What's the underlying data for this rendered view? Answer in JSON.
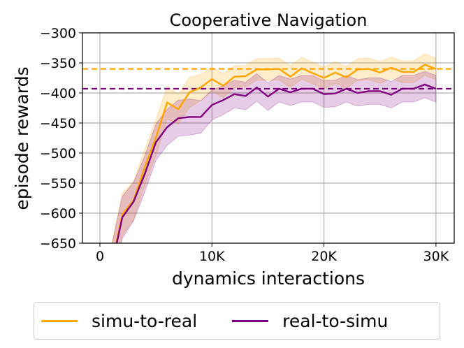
{
  "chart_data": {
    "type": "line",
    "title": "Cooperative Navigation",
    "xlabel": "dynamics interactions",
    "ylabel": "episode rewards",
    "xlim": [
      -1560,
      31630
    ],
    "ylim": [
      -650,
      -300
    ],
    "xticks": [
      0,
      10000,
      20000,
      30000
    ],
    "xtick_labels": [
      "0",
      "10K",
      "20K",
      "30K"
    ],
    "yticks": [
      -300,
      -350,
      -400,
      -450,
      -500,
      -550,
      -600,
      -650
    ],
    "ytick_labels": [
      "−300",
      "−350",
      "−400",
      "−450",
      "−500",
      "−550",
      "−600",
      "−650"
    ],
    "grid": true,
    "legend_placement": "below",
    "x": [
      1000,
      2000,
      3000,
      4000,
      5000,
      6000,
      7000,
      8000,
      9000,
      10000,
      11000,
      12000,
      13000,
      14000,
      15000,
      16000,
      17000,
      18000,
      19000,
      20000,
      21000,
      22000,
      23000,
      24000,
      25000,
      26000,
      27000,
      28000,
      29000,
      30000
    ],
    "series": [
      {
        "name": "simu-to-real",
        "color": "#FFA500",
        "values": [
          -690,
          -602,
          -579,
          -524,
          -474,
          -416,
          -427,
          -399,
          -391,
          -377,
          -388,
          -373,
          -372,
          -361,
          -361,
          -360,
          -373,
          -359,
          -367,
          -375,
          -366,
          -374,
          -361,
          -360,
          -366,
          -358,
          -365,
          -365,
          -353,
          -360
        ],
        "band_halfwidth": [
          35,
          35,
          32,
          30,
          30,
          27,
          25,
          25,
          22,
          20,
          20,
          18,
          18,
          18,
          18,
          18,
          18,
          18,
          18,
          18,
          18,
          18,
          18,
          18,
          18,
          18,
          18,
          18,
          18,
          18
        ],
        "reference_line": -360
      },
      {
        "name": "real-to-simu",
        "color": "#800080",
        "values": [
          -693,
          -607,
          -581,
          -535,
          -482,
          -457,
          -442,
          -440,
          -440,
          -420,
          -412,
          -402,
          -405,
          -391,
          -406,
          -393,
          -399,
          -393,
          -393,
          -402,
          -401,
          -393,
          -400,
          -397,
          -397,
          -403,
          -393,
          -393,
          -386,
          -393
        ],
        "band_halfwidth": [
          35,
          35,
          32,
          30,
          30,
          30,
          30,
          30,
          27,
          25,
          24,
          23,
          23,
          23,
          23,
          22,
          22,
          22,
          22,
          22,
          22,
          22,
          22,
          22,
          22,
          22,
          22,
          22,
          22,
          22
        ],
        "reference_line": -393
      }
    ]
  }
}
